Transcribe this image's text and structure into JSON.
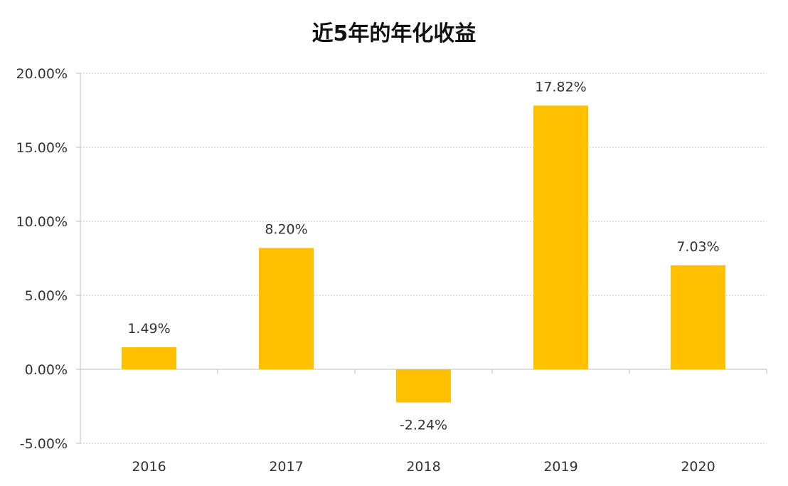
{
  "chart_data": {
    "type": "bar",
    "title": "近5年的年化收益",
    "xlabel": "",
    "ylabel": "",
    "categories": [
      "2016",
      "2017",
      "2018",
      "2019",
      "2020"
    ],
    "values": [
      1.49,
      8.2,
      -2.24,
      17.82,
      7.03
    ],
    "value_labels": [
      "1.49%",
      "8.20%",
      "-2.24%",
      "17.82%",
      "7.03%"
    ],
    "ylim": [
      -5,
      20
    ],
    "yticks": [
      20,
      15,
      10,
      5,
      0,
      -5
    ],
    "ytick_labels": [
      "20.00%",
      "15.00%",
      "10.00%",
      "5.00%",
      "0.00%",
      "-5.00%"
    ],
    "grid": true,
    "legend": "none",
    "bar_color": "#FFC000"
  }
}
